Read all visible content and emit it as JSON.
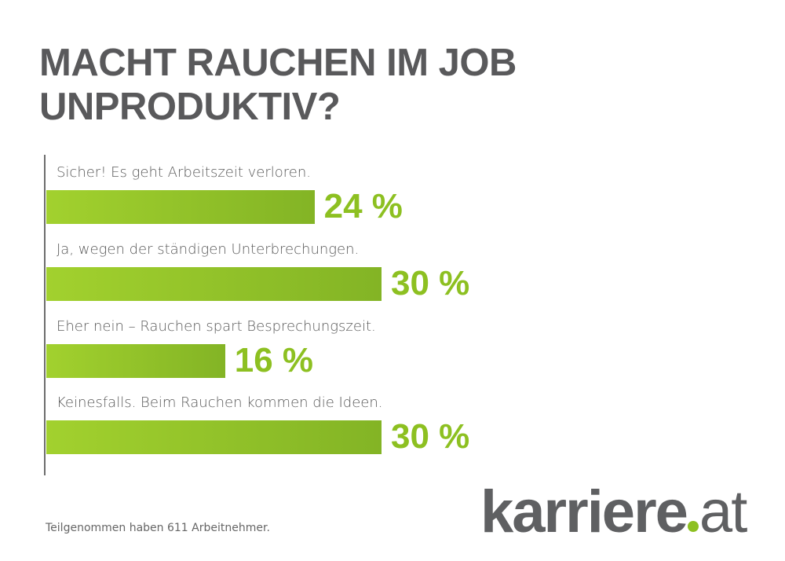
{
  "chart_data": {
    "type": "bar",
    "orientation": "horizontal",
    "title": "MACHT RAUCHEN IM JOB UNPRODUKTIV?",
    "categories": [
      "Sicher! Es geht Arbeitszeit verloren.",
      "Ja, wegen der ständigen Unterbrechungen.",
      "Eher nein – Rauchen spart Besprechungszeit.",
      "Keinesfalls. Beim Rauchen kommen die Ideen."
    ],
    "values": [
      24,
      30,
      16,
      30
    ],
    "value_labels": [
      "24 %",
      "30 %",
      "16 %",
      "30 %"
    ],
    "unit": "%",
    "xlim": [
      0,
      30
    ],
    "grid": false,
    "bar_color": "#8dc021"
  },
  "footer": "Teilgenommen haben 611 Arbeitnehmer.",
  "logo": {
    "name": "karriere",
    "tld": "at"
  }
}
